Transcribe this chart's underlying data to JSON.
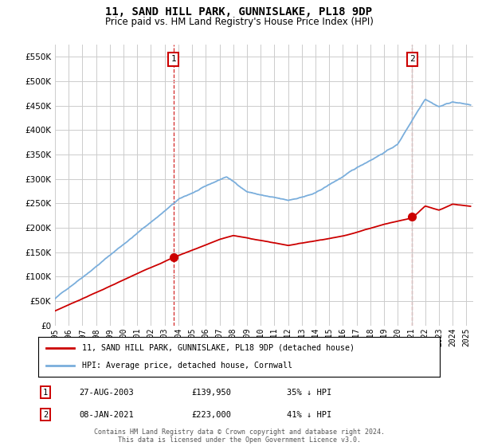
{
  "title": "11, SAND HILL PARK, GUNNISLAKE, PL18 9DP",
  "subtitle": "Price paid vs. HM Land Registry's House Price Index (HPI)",
  "red_line_color": "#cc0000",
  "blue_line_color": "#7aaedc",
  "grid_color": "#cccccc",
  "background_color": "#ffffff",
  "marker1_date_x": 2003.65,
  "marker1_date_label": "27-AUG-2003",
  "marker1_price_label": "£139,950",
  "marker1_price": 139950,
  "marker1_pct": "35% ↓ HPI",
  "marker2_date_x": 2021.03,
  "marker2_date_label": "08-JAN-2021",
  "marker2_price_label": "£223,000",
  "marker2_price": 223000,
  "marker2_pct": "41% ↓ HPI",
  "legend_label_red": "11, SAND HILL PARK, GUNNISLAKE, PL18 9DP (detached house)",
  "legend_label_blue": "HPI: Average price, detached house, Cornwall",
  "footer": "Contains HM Land Registry data © Crown copyright and database right 2024.\nThis data is licensed under the Open Government Licence v3.0.",
  "xmin": 1995,
  "xmax": 2025.5,
  "ylim": [
    0,
    575000
  ],
  "yticks": [
    0,
    50000,
    100000,
    150000,
    200000,
    250000,
    300000,
    350000,
    400000,
    450000,
    500000,
    550000
  ],
  "ytick_labels": [
    "£0",
    "£50K",
    "£100K",
    "£150K",
    "£200K",
    "£250K",
    "£300K",
    "£350K",
    "£400K",
    "£450K",
    "£500K",
    "£550K"
  ]
}
